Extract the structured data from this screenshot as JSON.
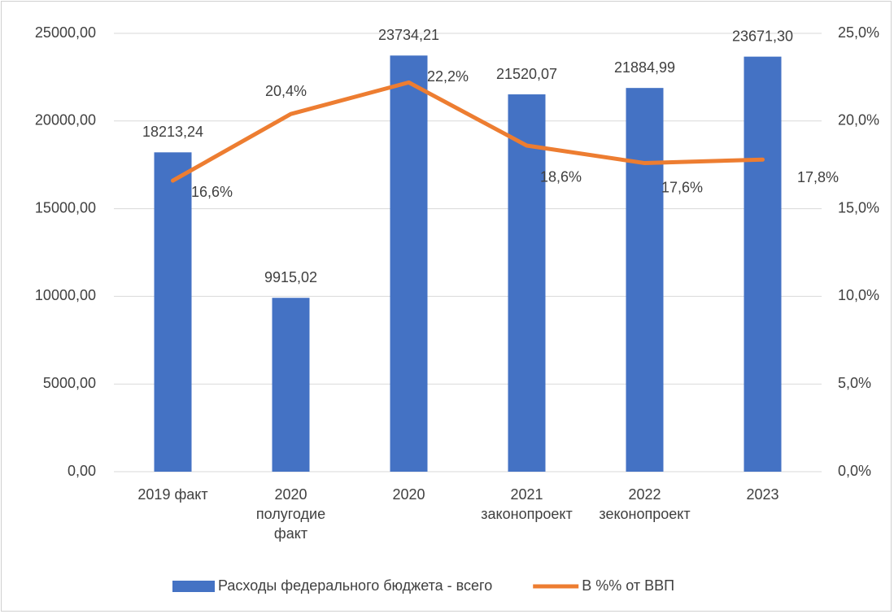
{
  "chart_data": {
    "type": "bar",
    "categories": [
      "2019 факт",
      "2020\nполугодие\nфакт",
      "2020",
      "2021\nзаконопроект",
      "2022\nзеконопроект",
      "2023"
    ],
    "series": [
      {
        "name": "Расходы федерального бюджета - всего",
        "type": "bar",
        "color": "#4472c4",
        "values": [
          18213.24,
          9915.02,
          23734.21,
          21520.07,
          21884.99,
          23671.3
        ],
        "value_labels": [
          "18213,24",
          "9915,02",
          "23734,21",
          "21520,07",
          "21884,99",
          "23671,30"
        ]
      },
      {
        "name": "В %% от ВВП",
        "type": "line",
        "axis": "y2",
        "color": "#ed7d31",
        "values": [
          16.6,
          20.4,
          22.2,
          18.6,
          17.6,
          17.8
        ],
        "value_labels": [
          "16,6%",
          "20,4%",
          "22,2%",
          "18,6%",
          "17,6%",
          "17,8%"
        ]
      }
    ],
    "ylim": [
      0,
      25000
    ],
    "yticks": [
      {
        "value": 0,
        "label": "0,00"
      },
      {
        "value": 5000,
        "label": "5000,00"
      },
      {
        "value": 10000,
        "label": "10000,00"
      },
      {
        "value": 15000,
        "label": "15000,00"
      },
      {
        "value": 20000,
        "label": "20000,00"
      },
      {
        "value": 25000,
        "label": "25000,00"
      }
    ],
    "y2lim": [
      0,
      25
    ],
    "y2ticks": [
      {
        "value": 0,
        "label": "0,0%"
      },
      {
        "value": 5,
        "label": "5,0%"
      },
      {
        "value": 10,
        "label": "10,0%"
      },
      {
        "value": 15,
        "label": "15,0%"
      },
      {
        "value": 20,
        "label": "20,0%"
      },
      {
        "value": 25,
        "label": "25,0%"
      }
    ],
    "grid": true,
    "legend": "bottom"
  }
}
